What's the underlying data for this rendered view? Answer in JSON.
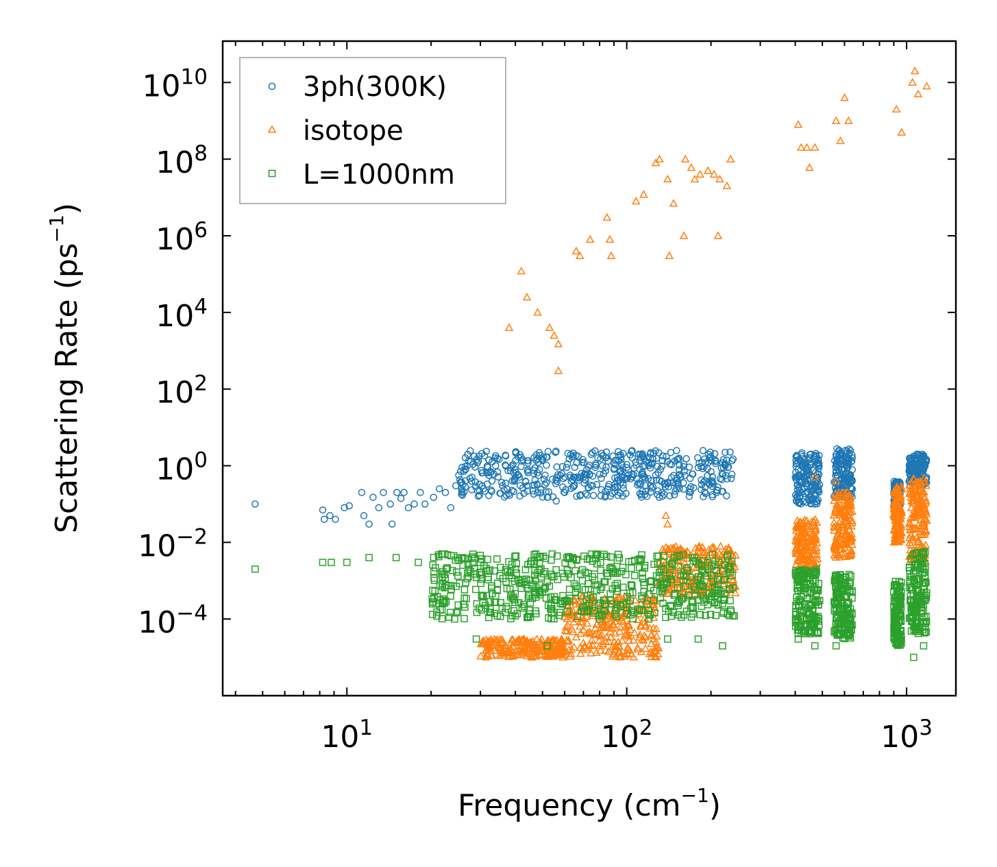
{
  "chart_data": {
    "type": "scatter",
    "title": "",
    "xlabel": "Frequency (cm−1)",
    "xlabel_parts": {
      "base": "Frequency (cm",
      "sup": "−1",
      "end": ")"
    },
    "ylabel": "Scattering Rate (ps−1)",
    "ylabel_parts": {
      "base": "Scattering Rate (ps",
      "sup": "−1",
      "end": ")"
    },
    "xscale": "log",
    "yscale": "log",
    "xlim": [
      3.6,
      1500
    ],
    "ylim": [
      1e-06,
      120000000000.0
    ],
    "x_ticks": [
      {
        "value": 10,
        "base": "10",
        "exp": "1"
      },
      {
        "value": 100,
        "base": "10",
        "exp": "2"
      },
      {
        "value": 1000,
        "base": "10",
        "exp": "3"
      }
    ],
    "y_ticks": [
      {
        "value": 10000000000.0,
        "base": "10",
        "exp": "10"
      },
      {
        "value": 100000000.0,
        "base": "10",
        "exp": "8"
      },
      {
        "value": 1000000.0,
        "base": "10",
        "exp": "6"
      },
      {
        "value": 10000.0,
        "base": "10",
        "exp": "4"
      },
      {
        "value": 100.0,
        "base": "10",
        "exp": "2"
      },
      {
        "value": 1,
        "base": "10",
        "exp": "0"
      },
      {
        "value": 0.01,
        "base": "10",
        "exp": "−2"
      },
      {
        "value": 0.0001,
        "base": "10",
        "exp": "−4"
      }
    ],
    "legend_position": "top-left",
    "series": [
      {
        "name": "3ph(300K)",
        "marker": "circle",
        "color": "#1f77b4",
        "points": [
          [
            4.7,
            0.1
          ],
          [
            8.2,
            0.07
          ],
          [
            8.3,
            0.04
          ],
          [
            8.7,
            0.05
          ],
          [
            9.1,
            0.04
          ],
          [
            9.8,
            0.08
          ],
          [
            10.2,
            0.09
          ],
          [
            11.3,
            0.2
          ],
          [
            11.5,
            0.05
          ],
          [
            12.0,
            0.03
          ],
          [
            12.4,
            0.15
          ],
          [
            13.0,
            0.08
          ],
          [
            13.5,
            0.2
          ],
          [
            14.3,
            0.1
          ],
          [
            14.5,
            0.03
          ],
          [
            15.1,
            0.2
          ],
          [
            15.6,
            0.14
          ],
          [
            16.0,
            0.2
          ],
          [
            16.6,
            0.08
          ],
          [
            17.4,
            0.1
          ],
          [
            18.3,
            0.2
          ],
          [
            19.0,
            0.1
          ],
          [
            20.4,
            0.15
          ],
          [
            21.4,
            0.25
          ],
          [
            22.5,
            0.2
          ],
          [
            23.5,
            0.08
          ],
          [
            24.5,
            0.3
          ],
          [
            25.7,
            0.25
          ],
          [
            26.5,
            0.4
          ],
          [
            28.0,
            0.5
          ],
          [
            30.4,
            0.65
          ],
          [
            33,
            0.4
          ],
          [
            36,
            0.3
          ],
          [
            40,
            0.5
          ],
          [
            44,
            0.3
          ],
          [
            48,
            0.2
          ],
          [
            52,
            0.15
          ],
          [
            56,
            0.12
          ],
          [
            60,
            0.2
          ],
          [
            65,
            0.3
          ],
          [
            70,
            0.5
          ],
          [
            80,
            0.6
          ],
          [
            90,
            0.8
          ],
          [
            100,
            0.9
          ],
          [
            120,
            1.2
          ],
          [
            140,
            1.3
          ],
          [
            160,
            1.1
          ],
          [
            180,
            0.9
          ],
          [
            200,
            0.7
          ],
          [
            220,
            1.2
          ],
          [
            240,
            1.5
          ],
          [
            410,
            1.2
          ],
          [
            440,
            0.8
          ],
          [
            470,
            0.1
          ],
          [
            560,
            0.2
          ],
          [
            600,
            1.3
          ],
          [
            630,
            2.5
          ],
          [
            920,
            0.3
          ],
          [
            1050,
            0.6
          ],
          [
            1100,
            1.5
          ],
          [
            1150,
            1.8
          ]
        ],
        "bands": [
          [
            25,
            240,
            0.15,
            2.5
          ],
          [
            400,
            490,
            0.1,
            2.2
          ],
          [
            550,
            640,
            0.15,
            2.8
          ],
          [
            900,
            950,
            0.08,
            0.4
          ],
          [
            1020,
            1180,
            0.3,
            2.0
          ]
        ]
      },
      {
        "name": "isotope",
        "marker": "triangle",
        "color": "#ff7f0e",
        "points": [
          [
            38,
            4000
          ],
          [
            42,
            120000
          ],
          [
            44,
            25000
          ],
          [
            48,
            10000
          ],
          [
            53,
            4000
          ],
          [
            55,
            2500
          ],
          [
            57,
            1500
          ],
          [
            57,
            300
          ],
          [
            66,
            400000
          ],
          [
            68,
            300000
          ],
          [
            74,
            800000
          ],
          [
            85,
            3000000
          ],
          [
            87,
            800000
          ],
          [
            88,
            300000
          ],
          [
            108,
            8000000
          ],
          [
            115,
            12000000
          ],
          [
            127,
            80000000
          ],
          [
            131,
            100000000
          ],
          [
            140,
            30000000
          ],
          [
            142,
            300000
          ],
          [
            147,
            7000000
          ],
          [
            160,
            1000000
          ],
          [
            162,
            100000000
          ],
          [
            170,
            60000000
          ],
          [
            175,
            30000000
          ],
          [
            183,
            40000000
          ],
          [
            195,
            50000000
          ],
          [
            205,
            40000000
          ],
          [
            212,
            1000000
          ],
          [
            215,
            30000000
          ],
          [
            228,
            20000000
          ],
          [
            235,
            100000000
          ],
          [
            410,
            800000000
          ],
          [
            420,
            200000000
          ],
          [
            440,
            200000000
          ],
          [
            450,
            60000000
          ],
          [
            470,
            200000000
          ],
          [
            560,
            1000000000
          ],
          [
            580,
            300000000
          ],
          [
            600,
            4000000000
          ],
          [
            620,
            1000000000
          ],
          [
            920,
            2000000000
          ],
          [
            960,
            500000000
          ],
          [
            1050,
            10000000000
          ],
          [
            1070,
            20000000000
          ],
          [
            1100,
            5000000000
          ],
          [
            1180,
            8000000000
          ],
          [
            138,
            0.05
          ],
          [
            140,
            0.03
          ],
          [
            470,
            0.5
          ],
          [
            560,
            0.4
          ]
        ],
        "bands": [
          [
            30,
            60,
            1e-05,
            3e-05
          ],
          [
            60,
            130,
            1e-05,
            0.0004
          ],
          [
            130,
            245,
            0.0004,
            0.008
          ],
          [
            400,
            480,
            0.002,
            0.04
          ],
          [
            550,
            640,
            0.004,
            0.2
          ],
          [
            900,
            960,
            0.01,
            0.3
          ],
          [
            1020,
            1180,
            0.003,
            0.5
          ]
        ]
      },
      {
        "name": "L=1000nm",
        "marker": "square",
        "color": "#2ca02c",
        "points": [
          [
            4.7,
            0.002
          ],
          [
            8.2,
            0.003
          ],
          [
            8.8,
            0.003
          ],
          [
            10,
            0.003
          ],
          [
            12,
            0.004
          ],
          [
            15,
            0.004
          ],
          [
            18,
            0.003
          ],
          [
            22,
            0.005
          ],
          [
            26,
            0.004
          ],
          [
            30,
            0.003
          ],
          [
            40,
            0.002
          ],
          [
            50,
            0.0005
          ],
          [
            60,
            0.0003
          ],
          [
            70,
            0.0002
          ],
          [
            80,
            0.0001
          ],
          [
            100,
            0.0002
          ],
          [
            120,
            0.0001
          ],
          [
            140,
            3e-05
          ],
          [
            180,
            3e-05
          ],
          [
            220,
            2e-05
          ],
          [
            29,
            3e-05
          ],
          [
            52,
            2e-05
          ],
          [
            410,
            3e-05
          ],
          [
            470,
            2e-05
          ],
          [
            560,
            2e-05
          ],
          [
            1060,
            1e-05
          ],
          [
            1150,
            2e-05
          ]
        ],
        "bands": [
          [
            20,
            245,
            0.0001,
            0.005
          ],
          [
            400,
            490,
            4e-05,
            0.002
          ],
          [
            550,
            640,
            3e-05,
            0.0015
          ],
          [
            900,
            960,
            2e-05,
            0.001
          ],
          [
            1020,
            1180,
            4e-05,
            0.006
          ]
        ]
      }
    ]
  }
}
